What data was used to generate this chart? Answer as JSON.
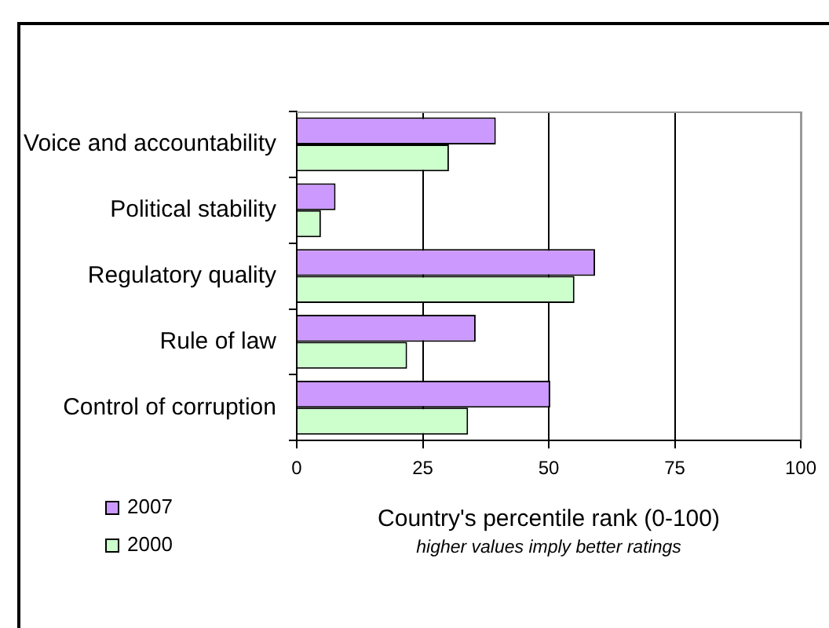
{
  "chart_data": {
    "type": "bar",
    "orientation": "horizontal",
    "xlabel": "Country's percentile rank (0-100)",
    "annotations": [
      "higher values imply better ratings"
    ],
    "categories": [
      "Voice and accountability",
      "Political stability",
      "Regulatory quality",
      "Rule of law",
      "Control of corruption"
    ],
    "series": [
      {
        "name": "2007",
        "color": "#cc99ff",
        "values": [
          39.5,
          7.7,
          59.2,
          35.5,
          50.3
        ]
      },
      {
        "name": "2000",
        "color": "#ccffcc",
        "values": [
          30.2,
          4.8,
          55.1,
          21.9,
          34.0
        ]
      }
    ],
    "xlim": [
      0,
      100
    ],
    "xticks": [
      0,
      25,
      50,
      75,
      100
    ],
    "grid": "x",
    "legend": "bottom left"
  }
}
